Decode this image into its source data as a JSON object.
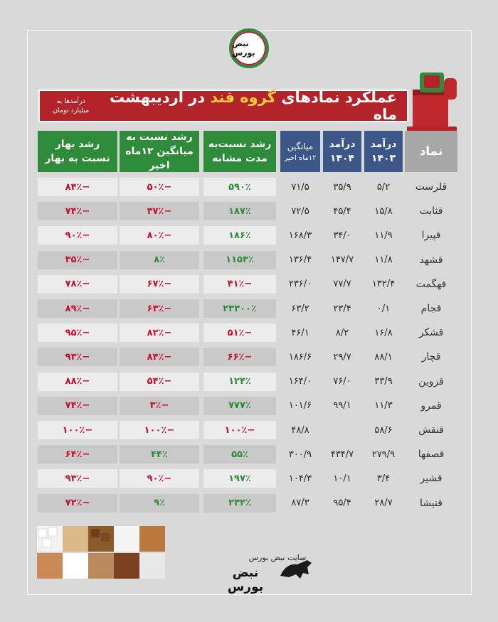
{
  "logo": {
    "text": "نبض بورس"
  },
  "title": {
    "prefix": "عملکرد نمادهای",
    "highlight": "گروه قند",
    "suffix": "در اردیبهشت ماه"
  },
  "unit_note": "درآمدها به میلیارد تومان",
  "headers": {
    "symbol": "نماد",
    "rev1403_a": "درآمد",
    "rev1403_b": "۱۴۰۳",
    "rev1404_a": "درآمد",
    "rev1404_b": "۱۴۰۴",
    "avg_a": "میانگین",
    "avg_b": "۱۲ماه اخیر",
    "g_same_a": "رشد نسبت‌به",
    "g_same_b": "مدت مشابه",
    "g_avg_a": "رشد نسبت به",
    "g_avg_b": "میانگین ۱۲ماه اخیر",
    "g_spring_a": "رشد بهار",
    "g_spring_b": "نسبت به بهار"
  },
  "rows": [
    {
      "symbol": "قلرست",
      "rev1403": "۵/۲",
      "rev1404": "۳۵/۹",
      "avg": "۷۱/۵",
      "g_same": "۵۹۰٪",
      "g_avg": "−۵۰٪",
      "g_spring": "−۸۴٪"
    },
    {
      "symbol": "قثابت",
      "rev1403": "۱۵/۸",
      "rev1404": "۴۵/۴",
      "avg": "۷۲/۵",
      "g_same": "۱۸۷٪",
      "g_avg": "−۳۷٪",
      "g_spring": "−۷۴٪"
    },
    {
      "symbol": "قپیرا",
      "rev1403": "۱۱/۹",
      "rev1404": "۳۴/۰",
      "avg": "۱۶۸/۳",
      "g_same": "۱۸۶٪",
      "g_avg": "−۸۰٪",
      "g_spring": "−۹۰٪"
    },
    {
      "symbol": "قشهد",
      "rev1403": "۱۱/۸",
      "rev1404": "۱۴۷/۷",
      "avg": "۱۳۶/۴",
      "g_same": "۱۱۵۳٪",
      "g_avg": "۸٪",
      "g_spring": "−۳۵٪"
    },
    {
      "symbol": "قهگمت",
      "rev1403": "۱۳۲/۴",
      "rev1404": "۷۷/۷",
      "avg": "۲۳۶/۰",
      "g_same": "−۴۱٪",
      "g_avg": "−۶۷٪",
      "g_spring": "−۷۸٪"
    },
    {
      "symbol": "قجام",
      "rev1403": "۰/۱",
      "rev1404": "۲۳/۴",
      "avg": "۶۳/۲",
      "g_same": "۲۳۳۰۰٪",
      "g_avg": "−۶۳٪",
      "g_spring": "−۸۹٪"
    },
    {
      "symbol": "قشکر",
      "rev1403": "۱۶/۸",
      "rev1404": "۸/۲",
      "avg": "۴۶/۱",
      "g_same": "−۵۱٪",
      "g_avg": "−۸۲٪",
      "g_spring": "−۹۵٪"
    },
    {
      "symbol": "قچار",
      "rev1403": "۸۸/۱",
      "rev1404": "۲۹/۷",
      "avg": "۱۸۶/۶",
      "g_same": "−۶۶٪",
      "g_avg": "−۸۴٪",
      "g_spring": "−۹۳٪"
    },
    {
      "symbol": "قزوین",
      "rev1403": "۳۳/۹",
      "rev1404": "۷۶/۰",
      "avg": "۱۶۴/۰",
      "g_same": "۱۲۴٪",
      "g_avg": "−۵۴٪",
      "g_spring": "−۸۸٪"
    },
    {
      "symbol": "قمرو",
      "rev1403": "۱۱/۳",
      "rev1404": "۹۹/۱",
      "avg": "۱۰۱/۶",
      "g_same": "۷۷۷٪",
      "g_avg": "−۳٪",
      "g_spring": "−۷۴٪"
    },
    {
      "symbol": "قنقش",
      "rev1403": "۵۸/۶",
      "rev1404": "",
      "avg": "۴۸/۸",
      "g_same": "−۱۰۰٪",
      "g_avg": "−۱۰۰٪",
      "g_spring": "−۱۰۰٪"
    },
    {
      "symbol": "قصفها",
      "rev1403": "۲۷۹/۹",
      "rev1404": "۴۳۴/۷",
      "avg": "۳۰۰/۹",
      "g_same": "۵۵٪",
      "g_avg": "۴۴٪",
      "g_spring": "−۶۴٪"
    },
    {
      "symbol": "قشیر",
      "rev1403": "۳/۴",
      "rev1404": "۱۰/۱",
      "avg": "۱۰۴/۳",
      "g_same": "۱۹۷٪",
      "g_avg": "−۹۰٪",
      "g_spring": "−۹۳٪"
    },
    {
      "symbol": "قنیشا",
      "rev1403": "۲۸/۷",
      "rev1404": "۹۵/۴",
      "avg": "۸۷/۳",
      "g_same": "۲۳۲٪",
      "g_avg": "۹٪",
      "g_spring": "−۷۲٪"
    }
  ],
  "colors": {
    "positive": "#2e8b3a",
    "negative": "#c8102e",
    "header_blue": "#3d5688",
    "header_green": "#2e8b3a",
    "banner": "#b3242a"
  },
  "footer": {
    "site_label": "سایت نبض بورس",
    "brand": "نبض بورس"
  }
}
